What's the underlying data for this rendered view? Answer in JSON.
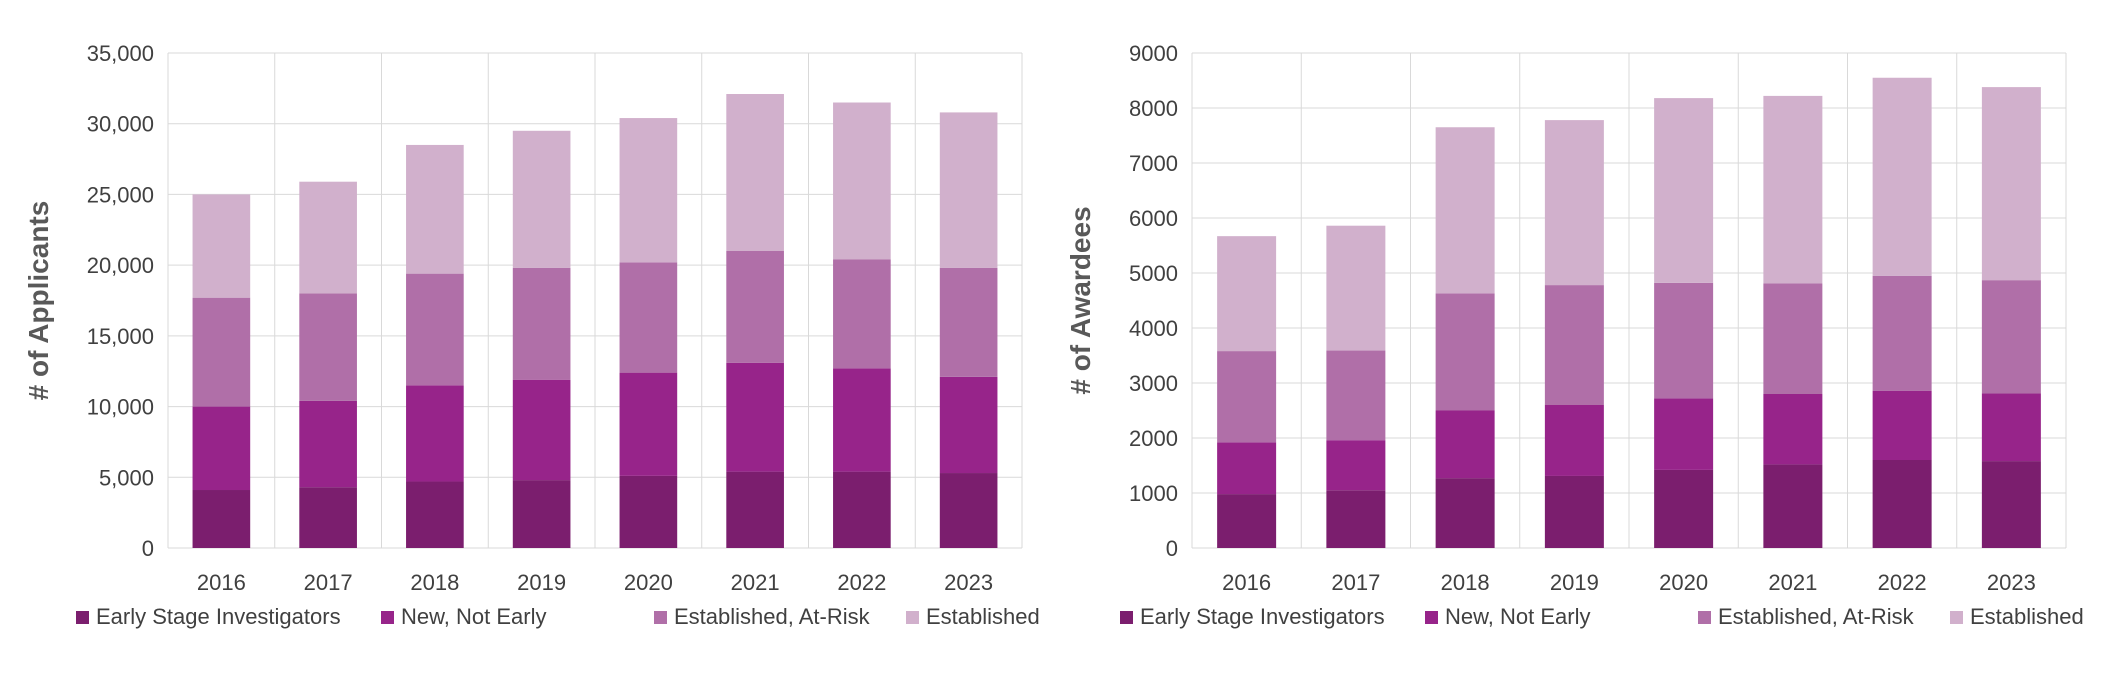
{
  "chart_data": [
    {
      "type": "bar",
      "stacked": true,
      "ylabel": "# of Applicants",
      "ylim": [
        0,
        35000
      ],
      "yticks": [
        "0",
        "5,000",
        "10,000",
        "15,000",
        "20,000",
        "25,000",
        "30,000",
        "35,000"
      ],
      "ytick_values": [
        0,
        5000,
        10000,
        15000,
        20000,
        25000,
        30000,
        35000
      ],
      "categories": [
        "2016",
        "2017",
        "2018",
        "2019",
        "2020",
        "2021",
        "2022",
        "2023"
      ],
      "grid": true,
      "legend_position": "bottom",
      "series": [
        {
          "name": "Early Stage Investigators",
          "color": "#7b1e6e",
          "values": [
            4100,
            4300,
            4700,
            4800,
            5100,
            5400,
            5400,
            5300
          ]
        },
        {
          "name": "New, Not Early",
          "color": "#97248a",
          "values": [
            5900,
            6100,
            6800,
            7100,
            7300,
            7700,
            7300,
            6800
          ]
        },
        {
          "name": "Established, At-Risk",
          "color": "#b06fa8",
          "values": [
            7700,
            7600,
            7900,
            7900,
            7800,
            7900,
            7700,
            7700
          ]
        },
        {
          "name": "Established",
          "color": "#d1b0cc",
          "values": [
            7300,
            7900,
            9100,
            9700,
            10200,
            11100,
            11100,
            11000
          ]
        }
      ]
    },
    {
      "type": "bar",
      "stacked": true,
      "ylabel": "# of Awardees",
      "ylim": [
        0,
        9000
      ],
      "yticks": [
        "0",
        "1000",
        "2000",
        "3000",
        "4000",
        "5000",
        "6000",
        "7000",
        "8000",
        "9000"
      ],
      "ytick_values": [
        0,
        1000,
        2000,
        3000,
        4000,
        5000,
        6000,
        7000,
        8000,
        9000
      ],
      "categories": [
        "2016",
        "2017",
        "2018",
        "2019",
        "2020",
        "2021",
        "2022",
        "2023"
      ],
      "grid": true,
      "legend_position": "bottom",
      "series": [
        {
          "name": "Early Stage Investigators",
          "color": "#7b1e6e",
          "values": [
            980,
            1050,
            1270,
            1310,
            1420,
            1520,
            1600,
            1580
          ]
        },
        {
          "name": "New, Not Early",
          "color": "#97248a",
          "values": [
            940,
            910,
            1230,
            1290,
            1300,
            1280,
            1260,
            1230
          ]
        },
        {
          "name": "Established, At-Risk",
          "color": "#b06fa8",
          "values": [
            1660,
            1630,
            2130,
            2180,
            2100,
            2010,
            2090,
            2060
          ]
        },
        {
          "name": "Established",
          "color": "#d1b0cc",
          "values": [
            2090,
            2270,
            3020,
            3000,
            3360,
            3410,
            3600,
            3510
          ]
        }
      ]
    }
  ]
}
